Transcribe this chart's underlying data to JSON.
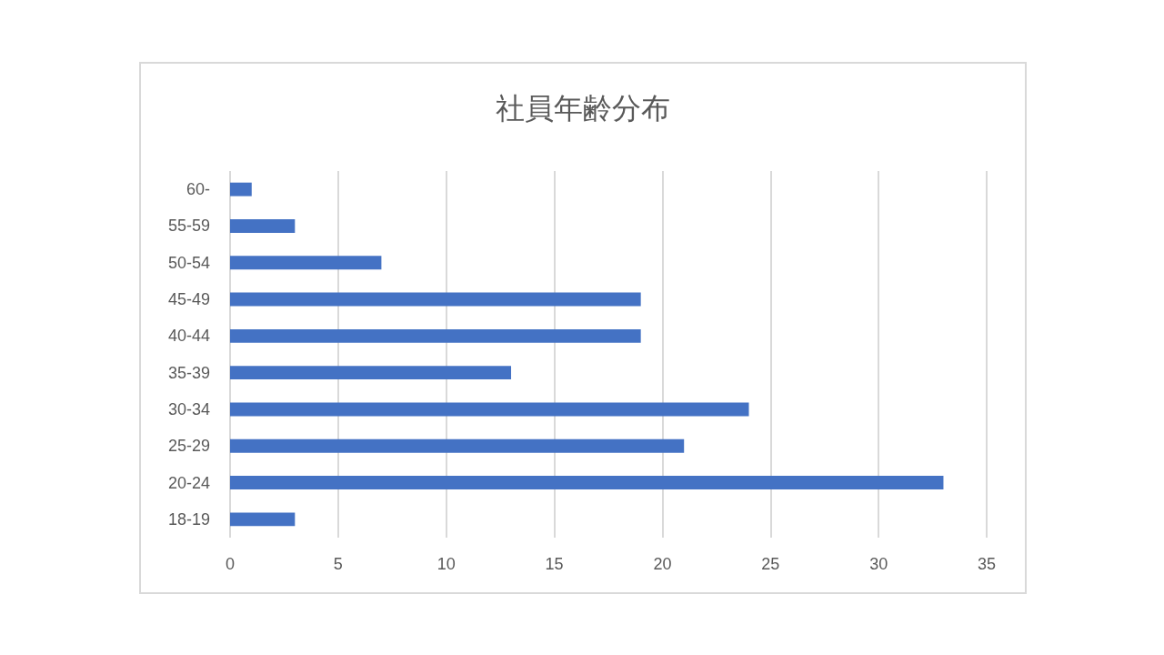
{
  "chart_data": {
    "type": "bar",
    "orientation": "horizontal",
    "title": "社員年齢分布",
    "categories": [
      "60-",
      "55-59",
      "50-54",
      "45-49",
      "40-44",
      "35-39",
      "30-34",
      "25-29",
      "20-24",
      "18-19"
    ],
    "values": [
      1,
      3,
      7,
      19,
      19,
      13,
      24,
      21,
      33,
      3
    ],
    "color": "#4472c4",
    "xlim": [
      0,
      35
    ],
    "xticks": [
      0,
      5,
      10,
      15,
      20,
      25,
      30,
      35
    ],
    "grid": "x"
  }
}
